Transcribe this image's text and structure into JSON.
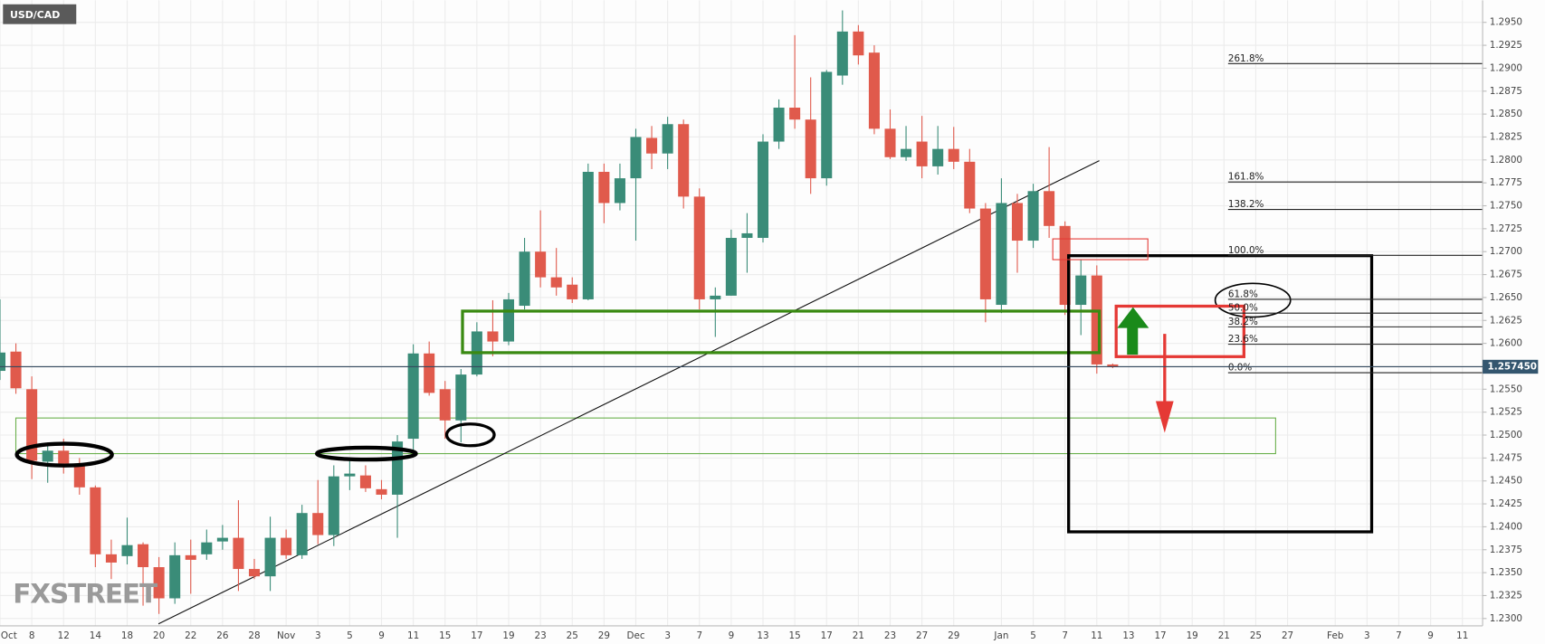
{
  "chart_data": {
    "type": "candlestick",
    "title": "USD/CAD",
    "watermark": "FXSTREET",
    "up_color": "#3a8c78",
    "down_color": "#e05a4c",
    "categories": [
      "Oct",
      null,
      "8",
      null,
      "12",
      null,
      "14",
      null,
      "18",
      null,
      "20",
      null,
      "22",
      null,
      "26",
      null,
      "28",
      null,
      "Nov",
      null,
      "3",
      null,
      "5",
      null,
      "9",
      null,
      "11",
      null,
      "15",
      null,
      "17",
      null,
      "19",
      null,
      "23",
      null,
      "25",
      null,
      "29",
      null,
      "Dec",
      null,
      "3",
      null,
      "7",
      null,
      "9",
      null,
      "13",
      null,
      "15",
      null,
      "17",
      null,
      "21",
      null,
      "23",
      null,
      "27",
      null,
      "29",
      null,
      null,
      "Jan",
      null,
      "5",
      null,
      "7",
      null,
      "11",
      null,
      "13",
      null,
      "17",
      null,
      "19",
      null,
      "21",
      null,
      "25",
      null,
      "27",
      null,
      null,
      "Feb",
      null,
      "3",
      null,
      "7",
      null,
      "9",
      null,
      "11"
    ],
    "open": [
      1.257,
      1.2591,
      1.255,
      1.2471,
      1.2483,
      1.2469,
      1.2443,
      1.237,
      1.2368,
      1.2381,
      1.2356,
      1.2322,
      1.2369,
      1.237,
      1.2384,
      1.2388,
      1.2354,
      1.2346,
      1.2388,
      1.2369,
      1.2415,
      1.2391,
      1.2455,
      1.2456,
      1.2441,
      1.2435,
      1.2496,
      1.2589,
      1.255,
      1.2516,
      1.2566,
      1.2613,
      1.2602,
      1.2641,
      1.27,
      1.2672,
      1.2664,
      1.2648,
      1.2787,
      1.2753,
      1.278,
      1.2824,
      1.2807,
      1.2839,
      1.276,
      1.2648,
      1.2652,
      1.2715,
      1.2715,
      1.282,
      1.2857,
      1.2844,
      1.278,
      1.2892,
      1.294,
      1.2917,
      1.2834,
      1.2803,
      1.282,
      1.2793,
      1.2812,
      1.2798,
      1.2747,
      1.2642,
      1.2753,
      1.2712,
      1.2766,
      1.2728,
      1.2642,
      1.2674,
      1.2577,
      null,
      null,
      null,
      null,
      null,
      null,
      null,
      null,
      null,
      null,
      null,
      null,
      null,
      null,
      null,
      null,
      null,
      null,
      null,
      null,
      null,
      null
    ],
    "high": [
      1.2648,
      1.26,
      1.2564,
      1.2492,
      1.2496,
      1.2475,
      1.2445,
      1.2386,
      1.241,
      1.2383,
      1.2367,
      1.2383,
      1.2386,
      1.2397,
      1.2402,
      1.2429,
      1.2365,
      1.2411,
      1.2397,
      1.2424,
      1.2451,
      1.2467,
      1.2472,
      1.2467,
      1.2451,
      1.25,
      1.2599,
      1.2602,
      1.2559,
      1.2572,
      1.2623,
      1.2647,
      1.2655,
      1.2715,
      1.2745,
      1.2704,
      1.2672,
      1.2796,
      1.2796,
      1.2796,
      1.2834,
      1.2837,
      1.2847,
      1.2844,
      1.2769,
      1.2661,
      1.2724,
      1.2742,
      1.2828,
      1.2866,
      1.2936,
      1.289,
      1.2898,
      1.2963,
      1.2947,
      1.2925,
      1.2855,
      1.2837,
      1.2848,
      1.2837,
      1.2836,
      1.2812,
      1.2753,
      1.278,
      1.2763,
      1.2774,
      1.2814,
      1.2733,
      1.2691,
      1.2685,
      1.2578,
      null,
      null,
      null,
      null,
      null,
      null,
      null,
      null,
      null,
      null,
      null,
      null,
      null,
      null,
      null,
      null,
      null,
      null,
      null,
      null,
      null,
      null
    ],
    "low": [
      1.256,
      1.2545,
      1.2452,
      1.2448,
      1.2458,
      1.2435,
      1.2356,
      1.2343,
      1.2359,
      1.2314,
      1.2305,
      1.2316,
      1.2327,
      1.2364,
      1.2375,
      1.233,
      1.2343,
      1.233,
      1.2365,
      1.2365,
      1.2381,
      1.2379,
      1.244,
      1.2438,
      1.243,
      1.2388,
      1.2476,
      1.2543,
      1.2496,
      1.2492,
      1.2564,
      1.2586,
      1.2598,
      1.2637,
      1.2661,
      1.2652,
      1.2644,
      1.2647,
      1.2731,
      1.2745,
      1.2712,
      1.279,
      1.279,
      1.2747,
      1.2637,
      1.2607,
      1.2652,
      1.2677,
      1.271,
      1.2812,
      1.2834,
      1.2763,
      1.2772,
      1.2882,
      1.2904,
      1.2828,
      1.2801,
      1.2799,
      1.278,
      1.2784,
      1.279,
      1.2742,
      1.2623,
      1.2633,
      1.2677,
      1.2704,
      1.2715,
      1.2631,
      1.2609,
      1.2567,
      1.2573,
      null,
      null,
      null,
      null,
      null,
      null,
      null,
      null,
      null,
      null,
      null,
      null,
      null,
      null,
      null,
      null,
      null,
      null,
      null,
      null,
      null,
      null
    ],
    "close": [
      1.259,
      1.2551,
      1.2472,
      1.2483,
      1.2469,
      1.2443,
      1.237,
      1.2361,
      1.238,
      1.2356,
      1.2322,
      1.2369,
      1.2364,
      1.2383,
      1.2388,
      1.2354,
      1.2346,
      1.2388,
      1.2369,
      1.2415,
      1.2391,
      1.2455,
      1.2458,
      1.2442,
      1.2435,
      1.2493,
      1.2589,
      1.2546,
      1.2516,
      1.2566,
      1.2613,
      1.2602,
      1.2648,
      1.27,
      1.2672,
      1.2661,
      1.2648,
      1.2787,
      1.2753,
      1.278,
      1.2825,
      1.2807,
      1.2839,
      1.276,
      1.2648,
      1.2652,
      1.2715,
      1.272,
      1.282,
      1.2857,
      1.2844,
      1.278,
      1.2896,
      1.294,
      1.2914,
      1.2834,
      1.2803,
      1.2812,
      1.2793,
      1.2812,
      1.2798,
      1.2747,
      1.2648,
      1.2753,
      1.2712,
      1.2766,
      1.2728,
      1.2642,
      1.2674,
      1.2577,
      1.2575,
      null,
      null,
      null,
      null,
      null,
      null,
      null,
      null,
      null,
      null,
      null,
      null,
      null,
      null,
      null,
      null,
      null,
      null,
      null,
      null,
      null,
      null
    ],
    "current_price": {
      "value": 1.25745,
      "label": "1.257450"
    },
    "fib_levels": [
      {
        "value": 1.2905,
        "label": "261.8%"
      },
      {
        "value": 1.2776,
        "label": "161.8%"
      },
      {
        "value": 1.2746,
        "label": "138.2%"
      },
      {
        "value": 1.2696,
        "label": "100.0%"
      },
      {
        "value": 1.2648,
        "label": "61.8%"
      },
      {
        "value": 1.2633,
        "label": "50.0%"
      },
      {
        "value": 1.2618,
        "label": "38.2%"
      },
      {
        "value": 1.2599,
        "label": "23.6%"
      },
      {
        "value": 1.2568,
        "label": "0.0%"
      }
    ],
    "ylim": [
      1.2292,
      1.2974
    ],
    "yticks": [
      {
        "value": 1.23,
        "label": "1.2300"
      },
      {
        "value": 1.2325,
        "label": "1.2325"
      },
      {
        "value": 1.235,
        "label": "1.2350"
      },
      {
        "value": 1.2375,
        "label": "1.2375"
      },
      {
        "value": 1.24,
        "label": "1.2400"
      },
      {
        "value": 1.2425,
        "label": "1.2425"
      },
      {
        "value": 1.245,
        "label": "1.2450"
      },
      {
        "value": 1.2475,
        "label": "1.2475"
      },
      {
        "value": 1.25,
        "label": "1.2500"
      },
      {
        "value": 1.2525,
        "label": "1.2525"
      },
      {
        "value": 1.255,
        "label": "1.2550"
      },
      {
        "value": 1.2575,
        "label": "1.2575"
      },
      {
        "value": 1.26,
        "label": "1.2600"
      },
      {
        "value": 1.2625,
        "label": "1.2625"
      },
      {
        "value": 1.265,
        "label": "1.2650"
      },
      {
        "value": 1.2675,
        "label": "1.2675"
      },
      {
        "value": 1.27,
        "label": "1.2700"
      },
      {
        "value": 1.2725,
        "label": "1.2725"
      },
      {
        "value": 1.275,
        "label": "1.2750"
      },
      {
        "value": 1.2775,
        "label": "1.2775"
      },
      {
        "value": 1.28,
        "label": "1.2800"
      },
      {
        "value": 1.2825,
        "label": "1.2825"
      },
      {
        "value": 1.285,
        "label": "1.2850"
      },
      {
        "value": 1.2875,
        "label": "1.2875"
      },
      {
        "value": 1.29,
        "label": "1.2900"
      },
      {
        "value": 1.2925,
        "label": "1.2925"
      },
      {
        "value": 1.295,
        "label": "1.2950"
      }
    ],
    "grid": true
  }
}
